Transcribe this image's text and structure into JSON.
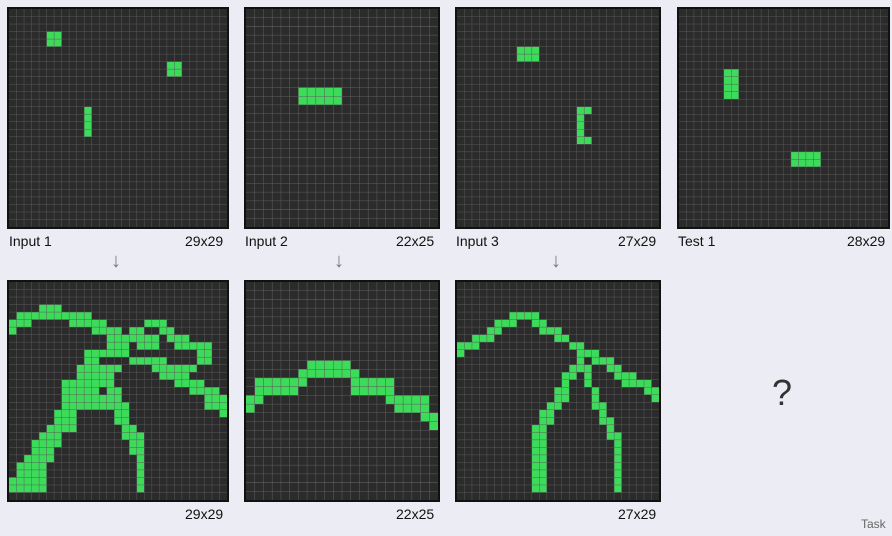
{
  "panels": {
    "input1": {
      "label": "Input 1",
      "size_label": "29x29",
      "rows": 29,
      "cols": 29,
      "cells": [
        [
          3,
          5
        ],
        [
          3,
          6
        ],
        [
          4,
          5
        ],
        [
          4,
          6
        ],
        [
          7,
          21
        ],
        [
          7,
          22
        ],
        [
          8,
          21
        ],
        [
          8,
          22
        ],
        [
          13,
          10
        ],
        [
          14,
          10
        ],
        [
          15,
          10
        ],
        [
          16,
          10
        ]
      ]
    },
    "input2": {
      "label": "Input 2",
      "size_label": "22x25",
      "rows": 25,
      "cols": 22,
      "cells": [
        [
          9,
          6
        ],
        [
          9,
          7
        ],
        [
          9,
          8
        ],
        [
          9,
          9
        ],
        [
          9,
          10
        ],
        [
          10,
          6
        ],
        [
          10,
          7
        ],
        [
          10,
          8
        ],
        [
          10,
          9
        ],
        [
          10,
          10
        ]
      ]
    },
    "input3": {
      "label": "Input 3",
      "size_label": "27x29",
      "rows": 29,
      "cols": 27,
      "cells": [
        [
          5,
          8
        ],
        [
          5,
          9
        ],
        [
          5,
          10
        ],
        [
          6,
          8
        ],
        [
          6,
          9
        ],
        [
          6,
          10
        ],
        [
          13,
          16
        ],
        [
          13,
          17
        ],
        [
          14,
          16
        ],
        [
          15,
          16
        ],
        [
          16,
          16
        ],
        [
          17,
          16
        ],
        [
          17,
          17
        ]
      ]
    },
    "test1": {
      "label": "Test 1",
      "size_label": "28x29",
      "rows": 29,
      "cols": 28,
      "cells": [
        [
          8,
          6
        ],
        [
          8,
          7
        ],
        [
          9,
          6
        ],
        [
          9,
          7
        ],
        [
          10,
          6
        ],
        [
          10,
          7
        ],
        [
          11,
          6
        ],
        [
          11,
          7
        ],
        [
          19,
          15
        ],
        [
          19,
          16
        ],
        [
          19,
          17
        ],
        [
          19,
          18
        ],
        [
          20,
          15
        ],
        [
          20,
          16
        ],
        [
          20,
          17
        ],
        [
          20,
          18
        ]
      ]
    },
    "output1": {
      "size_label": "29x29",
      "rows": 29,
      "cols": 29,
      "cells": [
        [
          3,
          4
        ],
        [
          3,
          5
        ],
        [
          3,
          6
        ],
        [
          4,
          1
        ],
        [
          4,
          2
        ],
        [
          4,
          3
        ],
        [
          4,
          4
        ],
        [
          4,
          5
        ],
        [
          4,
          6
        ],
        [
          4,
          7
        ],
        [
          4,
          8
        ],
        [
          4,
          9
        ],
        [
          4,
          10
        ],
        [
          5,
          0
        ],
        [
          5,
          1
        ],
        [
          5,
          2
        ],
        [
          5,
          8
        ],
        [
          5,
          9
        ],
        [
          5,
          10
        ],
        [
          5,
          11
        ],
        [
          5,
          12
        ],
        [
          5,
          18
        ],
        [
          5,
          19
        ],
        [
          5,
          20
        ],
        [
          6,
          0
        ],
        [
          6,
          11
        ],
        [
          6,
          12
        ],
        [
          6,
          13
        ],
        [
          6,
          14
        ],
        [
          6,
          16
        ],
        [
          6,
          17
        ],
        [
          6,
          20
        ],
        [
          6,
          21
        ],
        [
          7,
          13
        ],
        [
          7,
          14
        ],
        [
          7,
          15
        ],
        [
          7,
          16
        ],
        [
          7,
          17
        ],
        [
          7,
          18
        ],
        [
          7,
          19
        ],
        [
          7,
          21
        ],
        [
          7,
          22
        ],
        [
          7,
          23
        ],
        [
          8,
          13
        ],
        [
          8,
          14
        ],
        [
          8,
          15
        ],
        [
          8,
          17
        ],
        [
          8,
          18
        ],
        [
          8,
          19
        ],
        [
          8,
          22
        ],
        [
          8,
          23
        ],
        [
          8,
          24
        ],
        [
          8,
          25
        ],
        [
          8,
          26
        ],
        [
          9,
          10
        ],
        [
          9,
          11
        ],
        [
          9,
          12
        ],
        [
          9,
          13
        ],
        [
          9,
          14
        ],
        [
          9,
          15
        ],
        [
          9,
          25
        ],
        [
          9,
          26
        ],
        [
          10,
          10
        ],
        [
          10,
          11
        ],
        [
          10,
          16
        ],
        [
          10,
          17
        ],
        [
          10,
          18
        ],
        [
          10,
          19
        ],
        [
          10,
          20
        ],
        [
          10,
          25
        ],
        [
          10,
          26
        ],
        [
          11,
          9
        ],
        [
          11,
          10
        ],
        [
          11,
          11
        ],
        [
          11,
          12
        ],
        [
          11,
          13
        ],
        [
          11,
          14
        ],
        [
          11,
          19
        ],
        [
          11,
          20
        ],
        [
          11,
          21
        ],
        [
          11,
          22
        ],
        [
          11,
          23
        ],
        [
          11,
          24
        ],
        [
          12,
          9
        ],
        [
          12,
          10
        ],
        [
          12,
          11
        ],
        [
          12,
          12
        ],
        [
          12,
          13
        ],
        [
          12,
          20
        ],
        [
          12,
          21
        ],
        [
          12,
          22
        ],
        [
          12,
          23
        ],
        [
          13,
          7
        ],
        [
          13,
          8
        ],
        [
          13,
          9
        ],
        [
          13,
          10
        ],
        [
          13,
          11
        ],
        [
          13,
          12
        ],
        [
          13,
          13
        ],
        [
          13,
          22
        ],
        [
          13,
          23
        ],
        [
          13,
          24
        ],
        [
          13,
          25
        ],
        [
          14,
          7
        ],
        [
          14,
          8
        ],
        [
          14,
          9
        ],
        [
          14,
          10
        ],
        [
          14,
          11
        ],
        [
          14,
          13
        ],
        [
          14,
          14
        ],
        [
          14,
          24
        ],
        [
          14,
          25
        ],
        [
          14,
          26
        ],
        [
          14,
          27
        ],
        [
          15,
          7
        ],
        [
          15,
          8
        ],
        [
          15,
          9
        ],
        [
          15,
          10
        ],
        [
          15,
          11
        ],
        [
          15,
          12
        ],
        [
          15,
          13
        ],
        [
          15,
          14
        ],
        [
          15,
          26
        ],
        [
          15,
          27
        ],
        [
          15,
          28
        ],
        [
          16,
          7
        ],
        [
          16,
          8
        ],
        [
          16,
          9
        ],
        [
          16,
          10
        ],
        [
          16,
          11
        ],
        [
          16,
          12
        ],
        [
          16,
          13
        ],
        [
          16,
          14
        ],
        [
          16,
          15
        ],
        [
          16,
          26
        ],
        [
          16,
          27
        ],
        [
          16,
          28
        ],
        [
          17,
          6
        ],
        [
          17,
          7
        ],
        [
          17,
          8
        ],
        [
          17,
          14
        ],
        [
          17,
          15
        ],
        [
          17,
          28
        ],
        [
          18,
          6
        ],
        [
          18,
          7
        ],
        [
          18,
          8
        ],
        [
          18,
          14
        ],
        [
          18,
          15
        ],
        [
          19,
          5
        ],
        [
          19,
          6
        ],
        [
          19,
          7
        ],
        [
          19,
          8
        ],
        [
          19,
          15
        ],
        [
          19,
          16
        ],
        [
          20,
          4
        ],
        [
          20,
          5
        ],
        [
          20,
          6
        ],
        [
          20,
          15
        ],
        [
          20,
          16
        ],
        [
          20,
          17
        ],
        [
          21,
          3
        ],
        [
          21,
          4
        ],
        [
          21,
          5
        ],
        [
          21,
          6
        ],
        [
          21,
          16
        ],
        [
          21,
          17
        ],
        [
          22,
          3
        ],
        [
          22,
          4
        ],
        [
          22,
          5
        ],
        [
          22,
          16
        ],
        [
          22,
          17
        ],
        [
          23,
          2
        ],
        [
          23,
          3
        ],
        [
          23,
          4
        ],
        [
          23,
          5
        ],
        [
          23,
          17
        ],
        [
          24,
          1
        ],
        [
          24,
          2
        ],
        [
          24,
          3
        ],
        [
          24,
          4
        ],
        [
          24,
          17
        ],
        [
          25,
          1
        ],
        [
          25,
          2
        ],
        [
          25,
          3
        ],
        [
          25,
          4
        ],
        [
          25,
          17
        ],
        [
          26,
          0
        ],
        [
          26,
          1
        ],
        [
          26,
          2
        ],
        [
          26,
          3
        ],
        [
          26,
          4
        ],
        [
          26,
          17
        ],
        [
          27,
          0
        ],
        [
          27,
          1
        ],
        [
          27,
          2
        ],
        [
          27,
          3
        ],
        [
          27,
          4
        ],
        [
          27,
          17
        ]
      ]
    },
    "output2": {
      "size_label": "22x25",
      "rows": 25,
      "cols": 22,
      "cells": [
        [
          9,
          7
        ],
        [
          9,
          8
        ],
        [
          9,
          9
        ],
        [
          9,
          10
        ],
        [
          9,
          11
        ],
        [
          10,
          6
        ],
        [
          10,
          7
        ],
        [
          10,
          8
        ],
        [
          10,
          9
        ],
        [
          10,
          10
        ],
        [
          10,
          11
        ],
        [
          10,
          12
        ],
        [
          11,
          1
        ],
        [
          11,
          2
        ],
        [
          11,
          3
        ],
        [
          11,
          4
        ],
        [
          11,
          5
        ],
        [
          11,
          6
        ],
        [
          11,
          12
        ],
        [
          11,
          13
        ],
        [
          11,
          14
        ],
        [
          11,
          15
        ],
        [
          11,
          16
        ],
        [
          12,
          1
        ],
        [
          12,
          2
        ],
        [
          12,
          3
        ],
        [
          12,
          4
        ],
        [
          12,
          5
        ],
        [
          12,
          12
        ],
        [
          12,
          13
        ],
        [
          12,
          14
        ],
        [
          12,
          15
        ],
        [
          12,
          16
        ],
        [
          13,
          0
        ],
        [
          13,
          1
        ],
        [
          13,
          16
        ],
        [
          13,
          17
        ],
        [
          13,
          18
        ],
        [
          13,
          19
        ],
        [
          13,
          20
        ],
        [
          14,
          0
        ],
        [
          14,
          17
        ],
        [
          14,
          18
        ],
        [
          14,
          19
        ],
        [
          14,
          20
        ],
        [
          15,
          20
        ],
        [
          15,
          21
        ],
        [
          16,
          21
        ]
      ]
    },
    "output3": {
      "size_label": "27x29",
      "rows": 29,
      "cols": 27,
      "cells": [
        [
          4,
          7
        ],
        [
          4,
          8
        ],
        [
          4,
          9
        ],
        [
          4,
          10
        ],
        [
          5,
          5
        ],
        [
          5,
          6
        ],
        [
          5,
          7
        ],
        [
          5,
          10
        ],
        [
          5,
          11
        ],
        [
          6,
          4
        ],
        [
          6,
          5
        ],
        [
          6,
          11
        ],
        [
          6,
          12
        ],
        [
          6,
          13
        ],
        [
          7,
          2
        ],
        [
          7,
          3
        ],
        [
          7,
          4
        ],
        [
          7,
          13
        ],
        [
          7,
          14
        ],
        [
          8,
          0
        ],
        [
          8,
          1
        ],
        [
          8,
          2
        ],
        [
          8,
          15
        ],
        [
          8,
          16
        ],
        [
          9,
          0
        ],
        [
          9,
          16
        ],
        [
          9,
          17
        ],
        [
          9,
          18
        ],
        [
          10,
          16
        ],
        [
          10,
          18
        ],
        [
          10,
          19
        ],
        [
          10,
          20
        ],
        [
          11,
          15
        ],
        [
          11,
          16
        ],
        [
          11,
          17
        ],
        [
          11,
          20
        ],
        [
          11,
          21
        ],
        [
          12,
          14
        ],
        [
          12,
          15
        ],
        [
          12,
          17
        ],
        [
          12,
          21
        ],
        [
          12,
          22
        ],
        [
          12,
          23
        ],
        [
          13,
          14
        ],
        [
          13,
          17
        ],
        [
          13,
          22
        ],
        [
          13,
          23
        ],
        [
          13,
          24
        ],
        [
          13,
          25
        ],
        [
          14,
          13
        ],
        [
          14,
          14
        ],
        [
          14,
          18
        ],
        [
          14,
          25
        ],
        [
          14,
          26
        ],
        [
          15,
          13
        ],
        [
          15,
          14
        ],
        [
          15,
          18
        ],
        [
          15,
          26
        ],
        [
          16,
          12
        ],
        [
          16,
          13
        ],
        [
          16,
          18
        ],
        [
          16,
          19
        ],
        [
          17,
          11
        ],
        [
          17,
          12
        ],
        [
          17,
          19
        ],
        [
          18,
          11
        ],
        [
          18,
          12
        ],
        [
          18,
          19
        ],
        [
          18,
          20
        ],
        [
          19,
          10
        ],
        [
          19,
          11
        ],
        [
          19,
          20
        ],
        [
          20,
          10
        ],
        [
          20,
          11
        ],
        [
          20,
          20
        ],
        [
          20,
          21
        ],
        [
          21,
          10
        ],
        [
          21,
          11
        ],
        [
          21,
          21
        ],
        [
          22,
          10
        ],
        [
          22,
          11
        ],
        [
          22,
          21
        ],
        [
          23,
          10
        ],
        [
          23,
          11
        ],
        [
          23,
          21
        ],
        [
          24,
          10
        ],
        [
          24,
          11
        ],
        [
          24,
          21
        ],
        [
          25,
          10
        ],
        [
          25,
          11
        ],
        [
          25,
          21
        ],
        [
          26,
          10
        ],
        [
          26,
          11
        ],
        [
          26,
          21
        ],
        [
          27,
          10
        ],
        [
          27,
          11
        ],
        [
          27,
          21
        ]
      ]
    }
  },
  "arrow_glyph": "↓",
  "question_mark": "?",
  "task_label": "Task",
  "colors": {
    "background": "#2b2b2b",
    "filled": "#3ddb5a",
    "grid_line": "#5e5e5e"
  }
}
